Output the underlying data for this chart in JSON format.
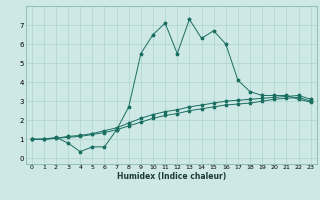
{
  "title": "",
  "xlabel": "Humidex (Indice chaleur)",
  "xlim": [
    -0.5,
    23.5
  ],
  "ylim": [
    -0.3,
    8.0
  ],
  "yticks": [
    0,
    1,
    2,
    3,
    4,
    5,
    6,
    7
  ],
  "xticks": [
    0,
    1,
    2,
    3,
    4,
    5,
    6,
    7,
    8,
    9,
    10,
    11,
    12,
    13,
    14,
    15,
    16,
    17,
    18,
    19,
    20,
    21,
    22,
    23
  ],
  "background_color": "#cde8e5",
  "grid_color": "#aed4d0",
  "line_color": "#1a6e62",
  "line1_x": [
    0,
    1,
    2,
    3,
    4,
    5,
    6,
    7,
    8,
    9,
    10,
    11,
    12,
    13,
    14,
    15,
    16,
    17,
    18,
    19,
    20,
    21,
    22,
    23
  ],
  "line1_y": [
    1.0,
    1.0,
    1.1,
    0.8,
    0.35,
    0.6,
    0.6,
    1.5,
    2.7,
    5.5,
    6.5,
    7.1,
    5.5,
    7.3,
    6.3,
    6.7,
    6.0,
    4.1,
    3.5,
    3.3,
    3.3,
    3.3,
    3.1,
    2.95
  ],
  "line2_x": [
    0,
    1,
    2,
    3,
    4,
    5,
    6,
    7,
    8,
    9,
    10,
    11,
    12,
    13,
    14,
    15,
    16,
    17,
    18,
    19,
    20,
    21,
    22,
    23
  ],
  "line2_y": [
    1.0,
    1.0,
    1.05,
    1.1,
    1.15,
    1.25,
    1.35,
    1.5,
    1.7,
    1.9,
    2.1,
    2.25,
    2.35,
    2.5,
    2.6,
    2.7,
    2.8,
    2.85,
    2.9,
    3.0,
    3.1,
    3.15,
    3.2,
    3.0
  ],
  "line3_x": [
    0,
    1,
    2,
    3,
    4,
    5,
    6,
    7,
    8,
    9,
    10,
    11,
    12,
    13,
    14,
    15,
    16,
    17,
    18,
    19,
    20,
    21,
    22,
    23
  ],
  "line3_y": [
    1.0,
    1.0,
    1.05,
    1.15,
    1.2,
    1.3,
    1.45,
    1.6,
    1.85,
    2.1,
    2.3,
    2.45,
    2.55,
    2.7,
    2.8,
    2.9,
    3.0,
    3.05,
    3.1,
    3.15,
    3.2,
    3.25,
    3.3,
    3.1
  ],
  "tick_fontsize": 4.5,
  "xlabel_fontsize": 5.5
}
